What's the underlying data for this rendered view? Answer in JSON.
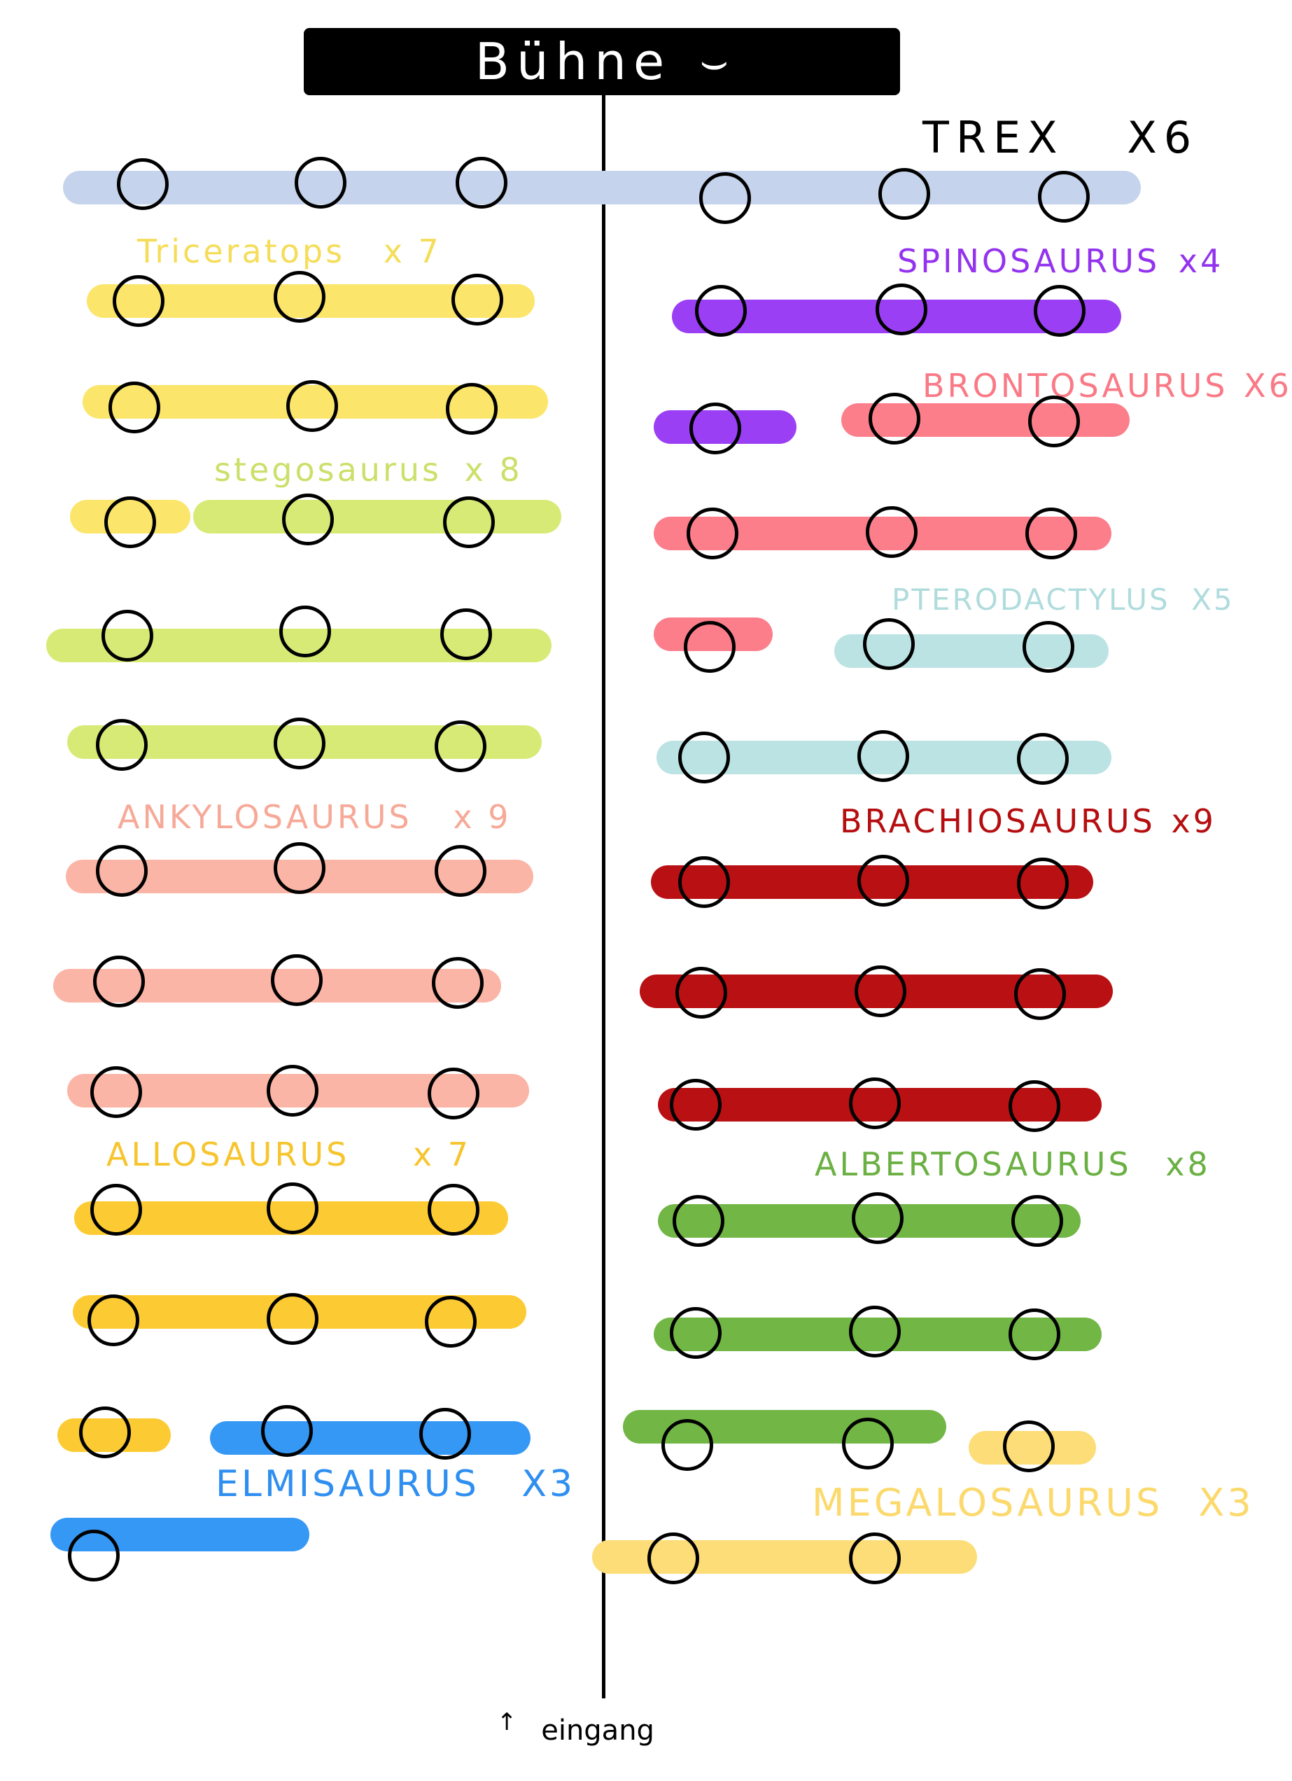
{
  "stage": {
    "title": "Bühne",
    "icon": "smiley-icon"
  },
  "entrance": {
    "arrow": "↑",
    "label": "eingang"
  },
  "colors": {
    "trex": "#c5d4ec",
    "triceratops": "#fbe56a",
    "stegosaurus": "#d8ea76",
    "ankylosaurus": "#fbb5a6",
    "allosaurus": "#fccb33",
    "elmisaurus": "#3598f4",
    "spinosaurus": "#9b3ff5",
    "brontosaurus": "#fc7e8a",
    "pterodactylus": "#bce3e4",
    "brachiosaurus": "#b91013",
    "albertosaurus": "#72b646",
    "megalosaurus": "#fcdd78"
  },
  "groups": {
    "trex": {
      "name": "TREX",
      "count": "X6",
      "label_color": "#000000"
    },
    "triceratops": {
      "name": "Triceratops",
      "count": "x 7",
      "label_color": "#f5dd59"
    },
    "stegosaurus": {
      "name": "stegosaurus",
      "count": "x 8",
      "label_color": "#cbe06a"
    },
    "ankylosaurus": {
      "name": "ANKYLOSAURUS",
      "count": "x 9",
      "label_color": "#f7a998"
    },
    "allosaurus": {
      "name": "ALLOSAURUS",
      "count": "x 7",
      "label_color": "#f6c52e"
    },
    "elmisaurus": {
      "name": "ELMISAURUS",
      "count": "X3",
      "label_color": "#2f8ff0"
    },
    "spinosaurus": {
      "name": "SPINOSAURUS",
      "count": "x4",
      "label_color": "#9333ee"
    },
    "brontosaurus": {
      "name": "BRONTOSAURUS",
      "count": "X6",
      "label_color": "#f97a86"
    },
    "pterodactylus": {
      "name": "PTERODACTYLUS",
      "count": "X5",
      "label_color": "#b0dcdd"
    },
    "brachiosaurus": {
      "name": "BRACHIOSAURUS",
      "count": "x9",
      "label_color": "#b50e10"
    },
    "albertosaurus": {
      "name": "ALBERTOSAURUS",
      "count": "x8",
      "label_color": "#6bb043"
    },
    "megalosaurus": {
      "name": "MEGALOSAURUS",
      "count": "X3",
      "label_color": "#fcd96d"
    }
  }
}
